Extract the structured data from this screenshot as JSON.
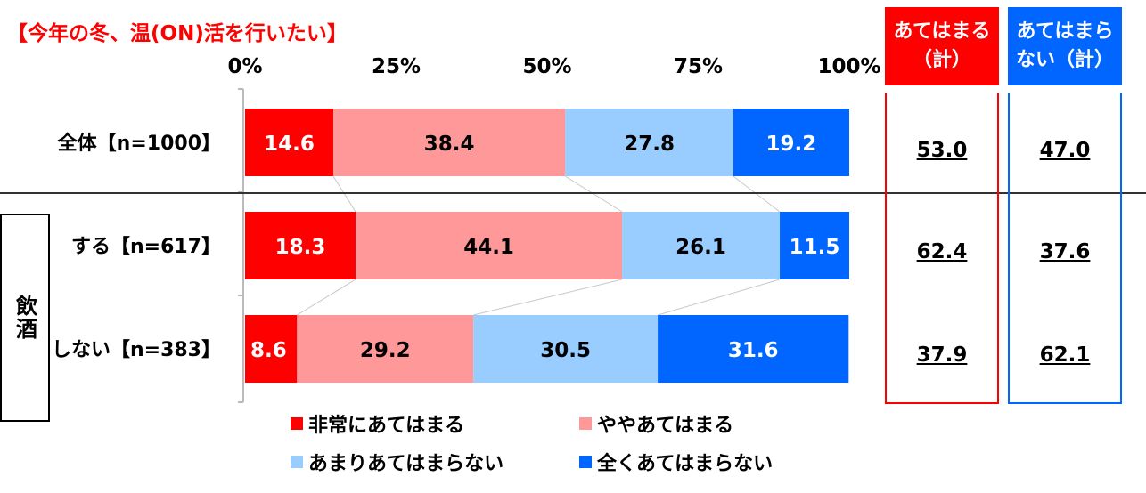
{
  "chart_data": {
    "type": "bar",
    "orientation": "horizontal",
    "stacked": true,
    "percent_scale": true,
    "title": "【今年の冬、温(ON)活を行いたい】",
    "x_ticks": [
      "0%",
      "25%",
      "50%",
      "75%",
      "100%"
    ],
    "xlim": [
      0,
      100
    ],
    "categories": [
      "全体【n=1000】",
      "する【n=617】",
      "しない【n=383】"
    ],
    "group_label": "飲酒",
    "series": [
      {
        "name": "非常にあてはまる",
        "color": "#ff0000",
        "values": [
          14.6,
          18.3,
          8.6
        ]
      },
      {
        "name": "ややあてはまる",
        "color": "#ff9999",
        "values": [
          38.4,
          44.1,
          29.2
        ]
      },
      {
        "name": "あまりあてはまらない",
        "color": "#99ccff",
        "values": [
          27.8,
          26.1,
          30.5
        ]
      },
      {
        "name": "全くあてはまらない",
        "color": "#0066ff",
        "values": [
          19.2,
          11.5,
          31.6
        ]
      }
    ],
    "summary": [
      {
        "header_line1": "あてはまる",
        "header_line2": "（計）",
        "color": "#ff0000",
        "values": [
          "53.0",
          "62.4",
          "37.9"
        ]
      },
      {
        "header_line1": "あてはまら",
        "header_line2": "ない（計）",
        "color": "#0066ff",
        "values": [
          "47.0",
          "37.6",
          "62.1"
        ]
      }
    ],
    "legend_position": "bottom",
    "grid": false
  }
}
